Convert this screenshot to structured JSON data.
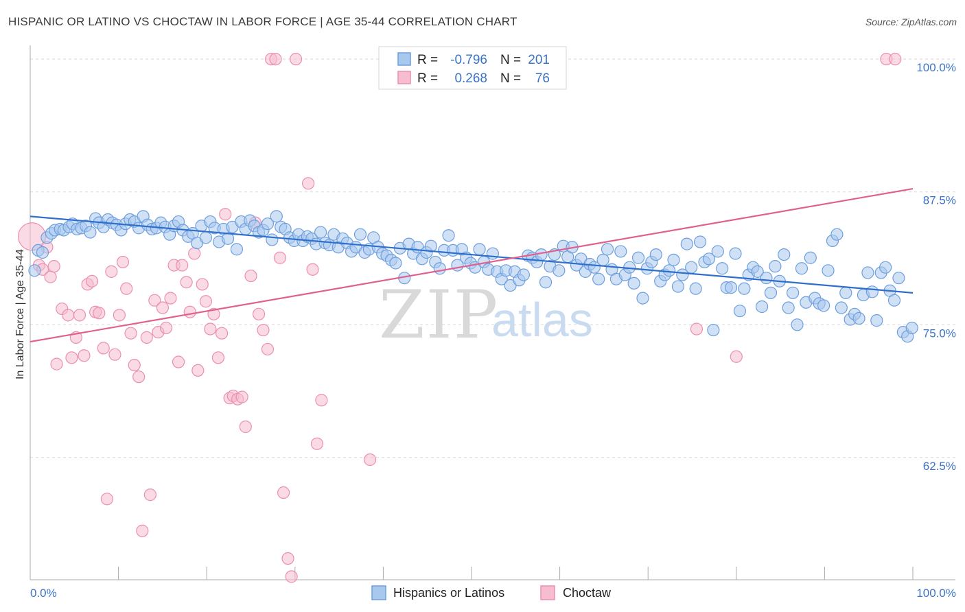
{
  "header": {
    "title": "HISPANIC OR LATINO VS CHOCTAW IN LABOR FORCE | AGE 35-44 CORRELATION CHART",
    "source": "Source: ZipAtlas.com"
  },
  "colors": {
    "blue_fill": "#a9c8ee",
    "blue_stroke": "#6d9fde",
    "blue_line": "#2f6fcc",
    "pink_fill": "#f6bcd0",
    "pink_stroke": "#eb8fb0",
    "pink_line": "#e0608e",
    "tick_text": "#3b73c7",
    "grid": "#d7d7d7"
  },
  "legend": {
    "rows": [
      {
        "r_label": "R =",
        "r_value": "-0.796",
        "n_label": "N =",
        "n_value": "201"
      },
      {
        "r_label": "R =",
        "r_value": "0.268",
        "n_label": "N =",
        "n_value": "76"
      }
    ]
  },
  "watermark": {
    "zip": "ZIP",
    "atlas": "atlas"
  },
  "chart_data": {
    "type": "scatter",
    "title": "HISPANIC OR LATINO VS CHOCTAW IN LABOR FORCE | AGE 35-44 CORRELATION CHART",
    "xlabel": "",
    "ylabel": "In Labor Force | Age 35-44",
    "xlim": [
      0,
      100
    ],
    "ylim": [
      51,
      101.3
    ],
    "x_tick_labels": [
      "0.0%",
      "100.0%"
    ],
    "y_ticks": [
      {
        "value": 100.0,
        "label": "100.0%"
      },
      {
        "value": 87.5,
        "label": "87.5%"
      },
      {
        "value": 75.0,
        "label": "75.0%"
      },
      {
        "value": 62.5,
        "label": "62.5%"
      }
    ],
    "grid": true,
    "legend_position": "top-center",
    "series": [
      {
        "name": "Hispanics or Latinos",
        "color": "#a9c8ee",
        "r": -0.796,
        "n": 201,
        "trend": {
          "x": [
            0,
            100
          ],
          "y": [
            85.2,
            78.0
          ]
        },
        "points": [
          [
            0.5,
            80.1
          ],
          [
            0.9,
            82.0
          ],
          [
            1.4,
            81.8
          ],
          [
            1.9,
            83.2
          ],
          [
            2.4,
            83.6
          ],
          [
            2.8,
            83.9
          ],
          [
            3.4,
            84.0
          ],
          [
            3.8,
            83.9
          ],
          [
            4.4,
            84.2
          ],
          [
            4.8,
            84.5
          ],
          [
            5.3,
            84.0
          ],
          [
            5.8,
            84.1
          ],
          [
            6.3,
            84.3
          ],
          [
            6.8,
            83.7
          ],
          [
            7.4,
            85.0
          ],
          [
            7.8,
            84.6
          ],
          [
            8.3,
            84.2
          ],
          [
            8.8,
            84.9
          ],
          [
            9.3,
            84.6
          ],
          [
            9.8,
            84.4
          ],
          [
            10.3,
            83.9
          ],
          [
            10.8,
            84.5
          ],
          [
            11.3,
            84.9
          ],
          [
            11.8,
            84.7
          ],
          [
            12.3,
            84.1
          ],
          [
            12.8,
            85.2
          ],
          [
            13.3,
            84.4
          ],
          [
            13.8,
            84.0
          ],
          [
            14.3,
            84.1
          ],
          [
            14.8,
            84.6
          ],
          [
            15.3,
            84.2
          ],
          [
            15.8,
            83.5
          ],
          [
            16.3,
            84.3
          ],
          [
            16.8,
            84.7
          ],
          [
            17.3,
            83.9
          ],
          [
            17.9,
            83.3
          ],
          [
            18.4,
            83.6
          ],
          [
            18.9,
            82.7
          ],
          [
            19.4,
            84.3
          ],
          [
            19.9,
            83.2
          ],
          [
            20.4,
            84.7
          ],
          [
            20.9,
            84.1
          ],
          [
            21.4,
            82.8
          ],
          [
            21.9,
            84.0
          ],
          [
            22.4,
            83.1
          ],
          [
            22.9,
            84.2
          ],
          [
            23.4,
            82.1
          ],
          [
            23.9,
            84.7
          ],
          [
            24.4,
            84.0
          ],
          [
            24.9,
            84.8
          ],
          [
            25.4,
            84.3
          ],
          [
            25.9,
            83.7
          ],
          [
            26.4,
            83.9
          ],
          [
            26.9,
            84.5
          ],
          [
            27.4,
            83.0
          ],
          [
            27.9,
            85.2
          ],
          [
            28.4,
            84.2
          ],
          [
            28.9,
            84.0
          ],
          [
            29.4,
            83.2
          ],
          [
            29.9,
            82.9
          ],
          [
            30.4,
            83.5
          ],
          [
            30.9,
            82.9
          ],
          [
            31.4,
            83.3
          ],
          [
            31.9,
            83.1
          ],
          [
            32.4,
            82.6
          ],
          [
            32.9,
            83.7
          ],
          [
            33.4,
            82.7
          ],
          [
            33.9,
            82.5
          ],
          [
            34.4,
            83.5
          ],
          [
            34.9,
            82.3
          ],
          [
            35.4,
            83.1
          ],
          [
            35.9,
            82.7
          ],
          [
            36.4,
            81.9
          ],
          [
            36.9,
            82.3
          ],
          [
            37.4,
            83.5
          ],
          [
            37.9,
            81.8
          ],
          [
            38.4,
            82.1
          ],
          [
            38.9,
            83.2
          ],
          [
            39.4,
            82.3
          ],
          [
            39.9,
            81.7
          ],
          [
            40.4,
            81.5
          ],
          [
            40.9,
            81.1
          ],
          [
            41.4,
            80.8
          ],
          [
            41.9,
            82.2
          ],
          [
            42.4,
            79.4
          ],
          [
            42.9,
            82.6
          ],
          [
            43.4,
            81.7
          ],
          [
            43.9,
            82.3
          ],
          [
            44.4,
            81.2
          ],
          [
            44.9,
            81.8
          ],
          [
            45.4,
            82.4
          ],
          [
            45.9,
            80.9
          ],
          [
            46.4,
            80.3
          ],
          [
            46.9,
            82.0
          ],
          [
            47.4,
            83.4
          ],
          [
            47.9,
            82.0
          ],
          [
            48.4,
            80.6
          ],
          [
            48.9,
            82.1
          ],
          [
            49.4,
            81.3
          ],
          [
            49.9,
            80.8
          ],
          [
            50.4,
            80.4
          ],
          [
            50.9,
            82.1
          ],
          [
            51.4,
            80.9
          ],
          [
            51.9,
            80.2
          ],
          [
            52.4,
            81.7
          ],
          [
            52.9,
            80.0
          ],
          [
            53.4,
            79.3
          ],
          [
            53.9,
            80.1
          ],
          [
            54.4,
            78.7
          ],
          [
            54.9,
            80.0
          ],
          [
            55.4,
            79.2
          ],
          [
            55.9,
            79.7
          ],
          [
            56.4,
            81.5
          ],
          [
            56.9,
            81.3
          ],
          [
            57.4,
            80.9
          ],
          [
            57.9,
            81.6
          ],
          [
            58.4,
            79.0
          ],
          [
            58.9,
            80.5
          ],
          [
            59.4,
            81.6
          ],
          [
            59.9,
            80.1
          ],
          [
            60.4,
            82.4
          ],
          [
            60.9,
            81.4
          ],
          [
            61.4,
            82.3
          ],
          [
            61.9,
            80.6
          ],
          [
            62.4,
            81.2
          ],
          [
            62.9,
            80.0
          ],
          [
            63.4,
            80.7
          ],
          [
            63.9,
            80.4
          ],
          [
            64.4,
            79.3
          ],
          [
            64.9,
            81.1
          ],
          [
            65.4,
            82.1
          ],
          [
            65.9,
            80.2
          ],
          [
            66.4,
            79.3
          ],
          [
            66.9,
            81.9
          ],
          [
            67.4,
            79.7
          ],
          [
            67.9,
            80.4
          ],
          [
            68.4,
            78.9
          ],
          [
            68.9,
            81.3
          ],
          [
            69.4,
            77.5
          ],
          [
            69.9,
            80.3
          ],
          [
            70.4,
            80.9
          ],
          [
            70.9,
            81.6
          ],
          [
            71.4,
            79.1
          ],
          [
            71.9,
            79.7
          ],
          [
            72.4,
            80.1
          ],
          [
            72.9,
            81.1
          ],
          [
            73.4,
            78.6
          ],
          [
            73.9,
            79.7
          ],
          [
            74.4,
            82.6
          ],
          [
            74.9,
            80.4
          ],
          [
            75.4,
            78.4
          ],
          [
            75.9,
            82.8
          ],
          [
            76.4,
            80.9
          ],
          [
            76.9,
            81.2
          ],
          [
            77.4,
            74.5
          ],
          [
            77.9,
            81.9
          ],
          [
            78.4,
            80.3
          ],
          [
            78.9,
            78.5
          ],
          [
            79.4,
            78.5
          ],
          [
            79.9,
            81.7
          ],
          [
            80.4,
            76.3
          ],
          [
            80.9,
            78.4
          ],
          [
            81.4,
            79.7
          ],
          [
            81.9,
            80.4
          ],
          [
            82.4,
            80.0
          ],
          [
            82.9,
            76.7
          ],
          [
            83.4,
            79.4
          ],
          [
            83.9,
            78.0
          ],
          [
            84.4,
            80.5
          ],
          [
            84.9,
            79.1
          ],
          [
            85.4,
            81.6
          ],
          [
            85.9,
            76.6
          ],
          [
            86.4,
            78.0
          ],
          [
            86.9,
            75.0
          ],
          [
            87.4,
            80.3
          ],
          [
            87.9,
            77.1
          ],
          [
            88.4,
            81.3
          ],
          [
            88.9,
            77.5
          ],
          [
            89.4,
            77.0
          ],
          [
            89.9,
            76.8
          ],
          [
            90.4,
            80.1
          ],
          [
            90.9,
            82.9
          ],
          [
            91.4,
            83.5
          ],
          [
            91.9,
            76.6
          ],
          [
            92.4,
            78.0
          ],
          [
            92.9,
            75.5
          ],
          [
            93.4,
            76.0
          ],
          [
            93.9,
            75.6
          ],
          [
            94.4,
            77.8
          ],
          [
            94.9,
            79.9
          ],
          [
            95.4,
            78.1
          ],
          [
            95.9,
            75.4
          ],
          [
            96.4,
            79.9
          ],
          [
            96.9,
            80.4
          ],
          [
            97.4,
            78.2
          ],
          [
            97.9,
            77.3
          ],
          [
            98.4,
            79.4
          ],
          [
            98.9,
            74.3
          ],
          [
            99.4,
            73.9
          ],
          [
            99.9,
            74.7
          ]
        ]
      },
      {
        "name": "Choctaw",
        "color": "#f6bcd0",
        "r": 0.268,
        "n": 76,
        "trend": {
          "x": [
            0,
            100
          ],
          "y": [
            73.4,
            87.8
          ]
        },
        "points": [
          [
            0.2,
            83.3
          ],
          [
            1.0,
            80.6
          ],
          [
            1.4,
            80.2
          ],
          [
            1.9,
            82.3
          ],
          [
            2.3,
            79.5
          ],
          [
            2.7,
            80.5
          ],
          [
            3.0,
            71.3
          ],
          [
            3.6,
            76.5
          ],
          [
            4.3,
            75.9
          ],
          [
            4.7,
            71.9
          ],
          [
            5.2,
            73.8
          ],
          [
            5.6,
            75.9
          ],
          [
            6.1,
            72.1
          ],
          [
            6.5,
            78.8
          ],
          [
            7.0,
            79.1
          ],
          [
            7.4,
            76.2
          ],
          [
            7.8,
            76.1
          ],
          [
            8.3,
            72.8
          ],
          [
            8.7,
            58.6
          ],
          [
            9.2,
            80.0
          ],
          [
            9.6,
            72.2
          ],
          [
            10.1,
            75.9
          ],
          [
            10.5,
            80.9
          ],
          [
            10.9,
            78.4
          ],
          [
            11.4,
            74.2
          ],
          [
            11.8,
            71.2
          ],
          [
            12.3,
            70.1
          ],
          [
            12.7,
            55.6
          ],
          [
            13.2,
            73.8
          ],
          [
            13.6,
            59.0
          ],
          [
            14.1,
            77.3
          ],
          [
            14.5,
            74.3
          ],
          [
            15.0,
            76.6
          ],
          [
            15.4,
            74.7
          ],
          [
            15.9,
            77.5
          ],
          [
            16.3,
            80.6
          ],
          [
            16.8,
            71.5
          ],
          [
            17.2,
            80.6
          ],
          [
            17.7,
            79.0
          ],
          [
            18.1,
            76.2
          ],
          [
            18.6,
            81.7
          ],
          [
            19.0,
            70.7
          ],
          [
            19.5,
            78.8
          ],
          [
            19.9,
            77.2
          ],
          [
            20.4,
            74.6
          ],
          [
            20.8,
            76.0
          ],
          [
            21.3,
            71.9
          ],
          [
            21.7,
            74.2
          ],
          [
            22.1,
            85.4
          ],
          [
            22.6,
            68.1
          ],
          [
            23.0,
            68.3
          ],
          [
            23.5,
            68.0
          ],
          [
            24.0,
            68.2
          ],
          [
            24.4,
            65.4
          ],
          [
            25.0,
            79.6
          ],
          [
            25.5,
            84.6
          ],
          [
            25.9,
            76.0
          ],
          [
            26.4,
            74.5
          ],
          [
            26.9,
            72.7
          ],
          [
            27.3,
            100.0
          ],
          [
            27.8,
            100.0
          ],
          [
            28.3,
            81.3
          ],
          [
            28.7,
            59.2
          ],
          [
            29.2,
            53.0
          ],
          [
            29.6,
            51.3
          ],
          [
            30.1,
            100.0
          ],
          [
            31.5,
            88.3
          ],
          [
            32.0,
            80.2
          ],
          [
            32.5,
            63.8
          ],
          [
            33.0,
            67.9
          ],
          [
            38.5,
            62.3
          ],
          [
            46.0,
            100.0
          ],
          [
            75.5,
            74.6
          ],
          [
            80.0,
            72.0
          ],
          [
            97.0,
            100.0
          ],
          [
            98.0,
            100.0
          ]
        ]
      }
    ]
  },
  "bottom_legend": {
    "items": [
      {
        "label": "Hispanics or Latinos"
      },
      {
        "label": "Choctaw"
      }
    ]
  }
}
